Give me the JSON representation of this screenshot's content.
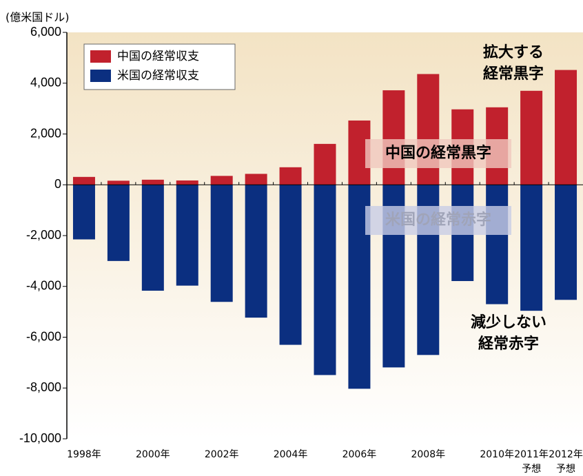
{
  "chart_data": {
    "type": "bar",
    "y_label": "(億米国ドル)",
    "categories": [
      "1998年",
      null,
      "2000年",
      null,
      "2002年",
      null,
      "2004年",
      null,
      "2006年",
      null,
      "2008年",
      null,
      "2010年",
      "2011年",
      "2012年"
    ],
    "category_notes": [
      null,
      null,
      null,
      null,
      null,
      null,
      null,
      null,
      null,
      null,
      null,
      null,
      null,
      "予想",
      "予想"
    ],
    "series": [
      {
        "name": "中国の経常収支",
        "color": "#c1212d",
        "values": [
          310,
          160,
          200,
          170,
          350,
          430,
          690,
          1610,
          2530,
          3720,
          4360,
          2970,
          3050,
          3700,
          4520
        ]
      },
      {
        "name": "米国の経常収支",
        "color": "#0b2f80",
        "values": [
          -2150,
          -3000,
          -4170,
          -3970,
          -4610,
          -5230,
          -6300,
          -7490,
          -8030,
          -7190,
          -6700,
          -3790,
          -4700,
          -4960,
          -4530
        ]
      }
    ],
    "ylim": [
      -10000,
      6000
    ],
    "yticks": [
      {
        "value": 6000,
        "label": "6,000"
      },
      {
        "value": 4000,
        "label": "4,000"
      },
      {
        "value": 2000,
        "label": "2,000"
      },
      0,
      {
        "value": -2000,
        "label": "-2,000"
      },
      {
        "value": -4000,
        "label": "-4,000"
      },
      {
        "value": -6000,
        "label": "-6,000"
      },
      {
        "value": -8000,
        "label": "-8,000"
      },
      {
        "value": -10000,
        "label": "-10,000"
      }
    ],
    "annotations": [
      {
        "lines": [
          "拡大する",
          "経常黒字"
        ]
      },
      {
        "lines": [
          "中国の経常黒字"
        ]
      },
      {
        "lines": [
          "米国の経常赤字"
        ]
      },
      {
        "lines": [
          "減少しない",
          "経常赤字"
        ]
      }
    ],
    "legend": "upper left"
  }
}
